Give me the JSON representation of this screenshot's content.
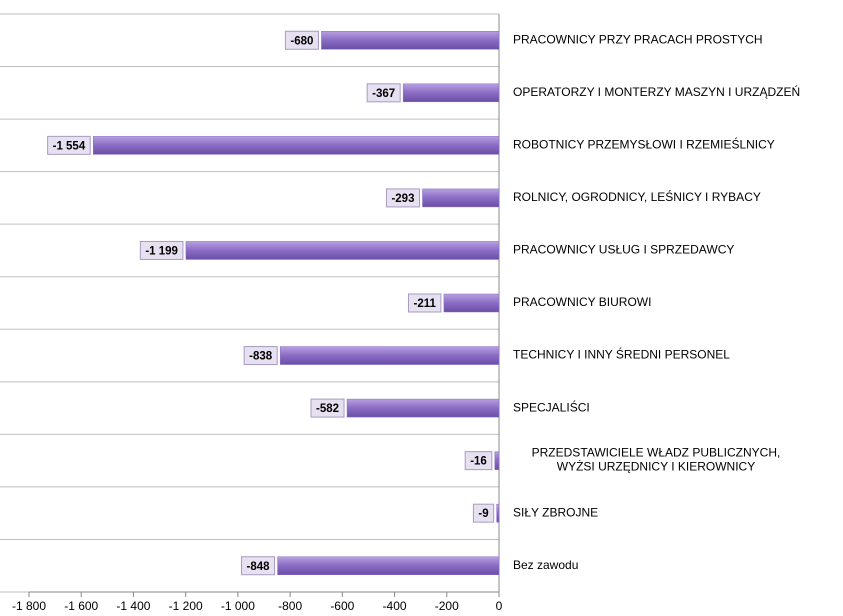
{
  "chart_data": {
    "type": "bar",
    "orientation": "horizontal",
    "categories": [
      "PRACOWNICY PRZY PRACACH PROSTYCH",
      "OPERATORZY I MONTERZY MASZYN I URZĄDZEŃ",
      "ROBOTNICY PRZEMYSŁOWI I RZEMIEŚLNICY",
      "ROLNICY, OGRODNICY, LEŚNICY I RYBACY",
      "PRACOWNICY USŁUG I SPRZEDAWCY",
      "PRACOWNICY BIUROWI",
      "TECHNICY I INNY ŚREDNI PERSONEL",
      "SPECJALIŚCI",
      "PRZEDSTAWICIELE WŁADZ PUBLICZNYCH,\nWYŻSI URZĘDNICY I KIEROWNICY",
      "SIŁY ZBROJNE",
      "Bez zawodu"
    ],
    "values": [
      -680,
      -367,
      -1554,
      -293,
      -1199,
      -211,
      -838,
      -582,
      -16,
      -9,
      -848
    ],
    "value_labels": [
      "-680",
      "-367",
      "-1 554",
      "-293",
      "-1 199",
      "-211",
      "-838",
      "-582",
      "-16",
      "-9",
      "-848"
    ],
    "color": "#8a6cc4",
    "xlim": [
      -1800,
      0
    ],
    "xticks": [
      {
        "value": -1800,
        "label": "-1 800"
      },
      {
        "value": -1600,
        "label": "-1 600"
      },
      {
        "value": -1400,
        "label": "-1 400"
      },
      {
        "value": -1200,
        "label": "-1 200"
      },
      {
        "value": -1000,
        "label": "-1 000"
      },
      -800,
      -600,
      -400,
      -200,
      0
    ],
    "grid": true
  }
}
